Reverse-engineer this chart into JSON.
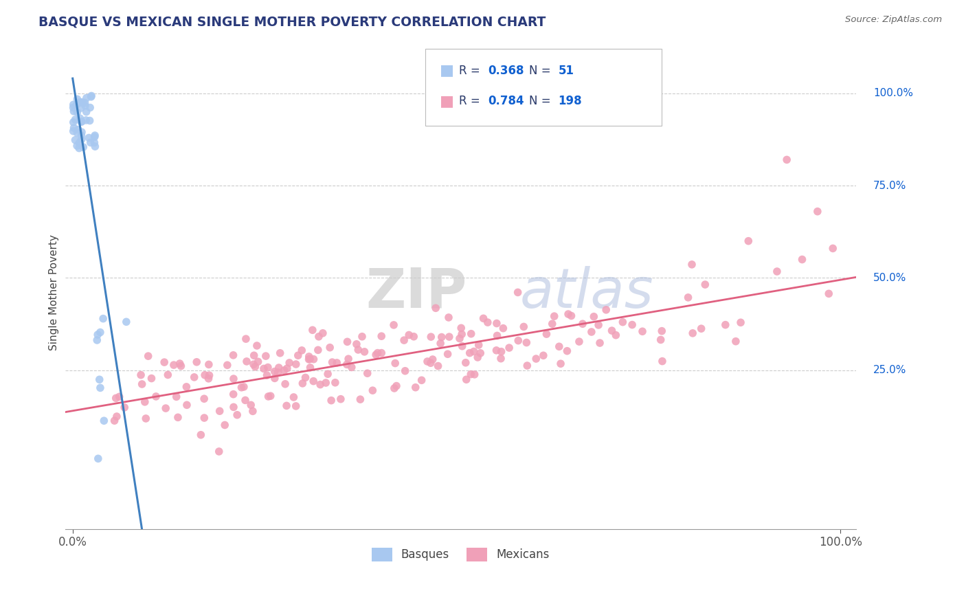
{
  "title": "BASQUE VS MEXICAN SINGLE MOTHER POVERTY CORRELATION CHART",
  "source": "Source: ZipAtlas.com",
  "ylabel": "Single Mother Poverty",
  "watermark_zip": "ZIP",
  "watermark_atlas": "atlas",
  "basque_R": 0.368,
  "basque_N": 51,
  "mexican_R": 0.784,
  "mexican_N": 198,
  "blue_color": "#A8C8F0",
  "pink_color": "#F0A0B8",
  "blue_line_color": "#4080C0",
  "blue_dashed_color": "#90B8E0",
  "pink_line_color": "#E06080",
  "title_color": "#2A3A7A",
  "legend_text_color": "#2A3A6A",
  "legend_value_color": "#1060D0",
  "right_tick_color": "#1060D0",
  "ytick_labels_right": [
    "25.0%",
    "50.0%",
    "75.0%",
    "100.0%"
  ],
  "ytick_values_right": [
    0.25,
    0.5,
    0.75,
    1.0
  ],
  "background_color": "#FFFFFF",
  "grid_color": "#CCCCCC",
  "ylim_min": -0.18,
  "ylim_max": 1.1,
  "xlim_min": -0.01,
  "xlim_max": 1.02
}
